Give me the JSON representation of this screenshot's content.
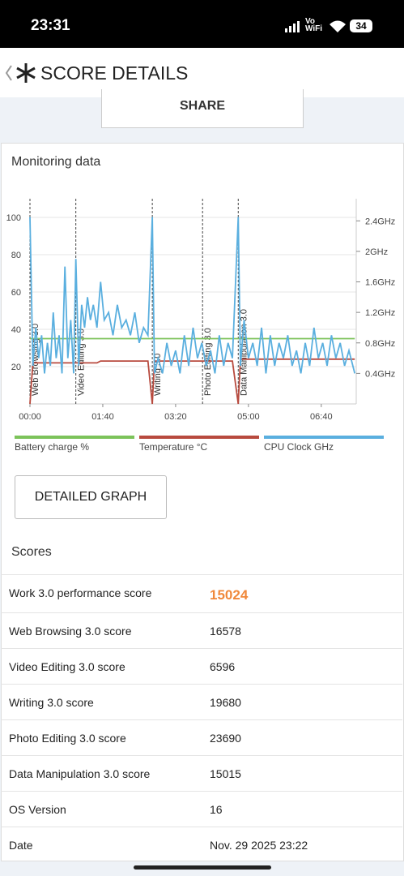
{
  "status_bar": {
    "time": "23:31",
    "network": "Vo\nWiFi",
    "battery": "34"
  },
  "header": {
    "title": "SCORE DETAILS"
  },
  "share_button": "SHARE",
  "monitoring": {
    "title": "Monitoring data",
    "chart_data": {
      "type": "line",
      "x": [
        0,
        4,
        8,
        12,
        16,
        20,
        24,
        28,
        32,
        36,
        40,
        44,
        48,
        52,
        56,
        60,
        63,
        67,
        71,
        75,
        79,
        83,
        87,
        92,
        97,
        102,
        108,
        114,
        120,
        126,
        132,
        138,
        144,
        150,
        156,
        162,
        168,
        171,
        176,
        182,
        188,
        194,
        200,
        206,
        212,
        218,
        224,
        230,
        236,
        242,
        248,
        254,
        260,
        266,
        272,
        278,
        286,
        289,
        294,
        300,
        306,
        312,
        318,
        324,
        330,
        336,
        342,
        348,
        354,
        360,
        366,
        372,
        378,
        384,
        390,
        396,
        402,
        408,
        414,
        420,
        426,
        432,
        438,
        446
      ],
      "series": [
        {
          "name": "Battery charge %",
          "color": "#7cc35a",
          "values": [
            35,
            35,
            35,
            35,
            35,
            35,
            35,
            35,
            35,
            35,
            35,
            35,
            35,
            35,
            35,
            35,
            35,
            35,
            35,
            35,
            35,
            35,
            35,
            35,
            35,
            35,
            35,
            35,
            35,
            35,
            35,
            35,
            35,
            35,
            35,
            35,
            35,
            35,
            35,
            35,
            35,
            35,
            35,
            35,
            35,
            35,
            35,
            35,
            35,
            35,
            35,
            35,
            35,
            35,
            35,
            35,
            35,
            35,
            35,
            35,
            35,
            35,
            35,
            35,
            35,
            35,
            35,
            35,
            35,
            35,
            35,
            35,
            35,
            35,
            35,
            35,
            35,
            35,
            35,
            35,
            35,
            35,
            35,
            35
          ]
        },
        {
          "name": "Temperature °C",
          "color": "#b84a3e",
          "values": [
            0,
            22,
            22,
            22,
            22,
            22,
            22,
            22,
            22,
            22,
            22,
            22,
            22,
            22,
            22,
            22,
            22,
            22,
            22,
            22,
            22,
            22,
            22,
            22,
            23,
            23,
            23,
            23,
            23,
            23,
            23,
            23,
            23,
            23,
            23,
            23,
            0,
            23,
            23,
            23,
            23,
            23,
            23,
            23,
            23,
            23,
            23,
            23,
            23,
            23,
            23,
            23,
            23,
            23,
            23,
            23,
            0,
            24,
            24,
            24,
            24,
            24,
            24,
            24,
            24,
            24,
            24,
            24,
            24,
            24,
            24,
            24,
            24,
            24,
            24,
            24,
            24,
            24,
            24,
            24,
            24,
            24,
            24,
            24
          ]
        },
        {
          "name": "CPU Clock GHz",
          "color": "#5aafdf",
          "axis": "y2",
          "values": [
            2.45,
            0.5,
            1.0,
            0.6,
            0.9,
            0.4,
            0.8,
            0.5,
            1.2,
            0.6,
            0.9,
            0.4,
            1.8,
            0.6,
            1.1,
            0.4,
            1.9,
            0.5,
            1.3,
            1.0,
            1.4,
            1.1,
            1.3,
            1.0,
            1.6,
            1.1,
            1.2,
            0.9,
            1.3,
            1.0,
            1.1,
            0.9,
            1.2,
            0.8,
            1.0,
            0.9,
            2.45,
            0.4,
            0.6,
            0.4,
            0.8,
            0.5,
            0.7,
            0.4,
            0.9,
            0.5,
            1.0,
            0.6,
            0.8,
            0.5,
            0.7,
            0.4,
            0.9,
            0.5,
            0.8,
            0.6,
            2.45,
            0.5,
            1.1,
            0.6,
            0.8,
            0.5,
            1.0,
            0.4,
            0.9,
            0.5,
            0.8,
            0.6,
            0.9,
            0.5,
            0.7,
            0.4,
            0.8,
            0.5,
            1.0,
            0.6,
            0.8,
            0.5,
            0.9,
            0.6,
            0.8,
            0.5,
            0.7,
            0.4
          ]
        }
      ],
      "xlim": [
        0,
        448
      ],
      "xticks": [
        {
          "value": 0,
          "label": "00:00"
        },
        {
          "value": 100,
          "label": "01:40"
        },
        {
          "value": 200,
          "label": "03:20"
        },
        {
          "value": 300,
          "label": "05:00"
        },
        {
          "value": 400,
          "label": "06:40"
        }
      ],
      "ylim": [
        0,
        110
      ],
      "yticks": [
        20,
        40,
        60,
        80,
        100
      ],
      "y2lim": [
        0,
        2.69
      ],
      "y2ticks": [
        {
          "value": 0.4,
          "label": "0.4GHz"
        },
        {
          "value": 0.8,
          "label": "0.8GHz"
        },
        {
          "value": 1.2,
          "label": "1.2GHz"
        },
        {
          "value": 1.6,
          "label": "1.6GHz"
        },
        {
          "value": 2.0,
          "label": "2GHz"
        },
        {
          "value": 2.4,
          "label": "2.4GHz"
        }
      ],
      "grid": true,
      "annotations": [
        {
          "x": 0,
          "text": "Web Browsing 3.0"
        },
        {
          "x": 63,
          "text": "Video Editing 3.0"
        },
        {
          "x": 168,
          "text": "Writing 3.0"
        },
        {
          "x": 237,
          "text": "Photo Editing 3.0"
        },
        {
          "x": 286,
          "text": "Data Manipulation 3.0"
        }
      ]
    }
  },
  "detailed_graph_button": "DETAILED GRAPH",
  "scores": {
    "title": "Scores",
    "rows": [
      [
        "Work 3.0 performance score",
        "15024"
      ],
      [
        "Web Browsing 3.0 score",
        "16578"
      ],
      [
        "Video Editing 3.0 score",
        "6596"
      ],
      [
        "Writing 3.0 score",
        "19680"
      ],
      [
        "Photo Editing 3.0 score",
        "23690"
      ],
      [
        "Data Manipulation 3.0 score",
        "15015"
      ],
      [
        "OS Version",
        "16"
      ],
      [
        "Date",
        "Nov. 29 2025 23:22"
      ]
    ]
  }
}
